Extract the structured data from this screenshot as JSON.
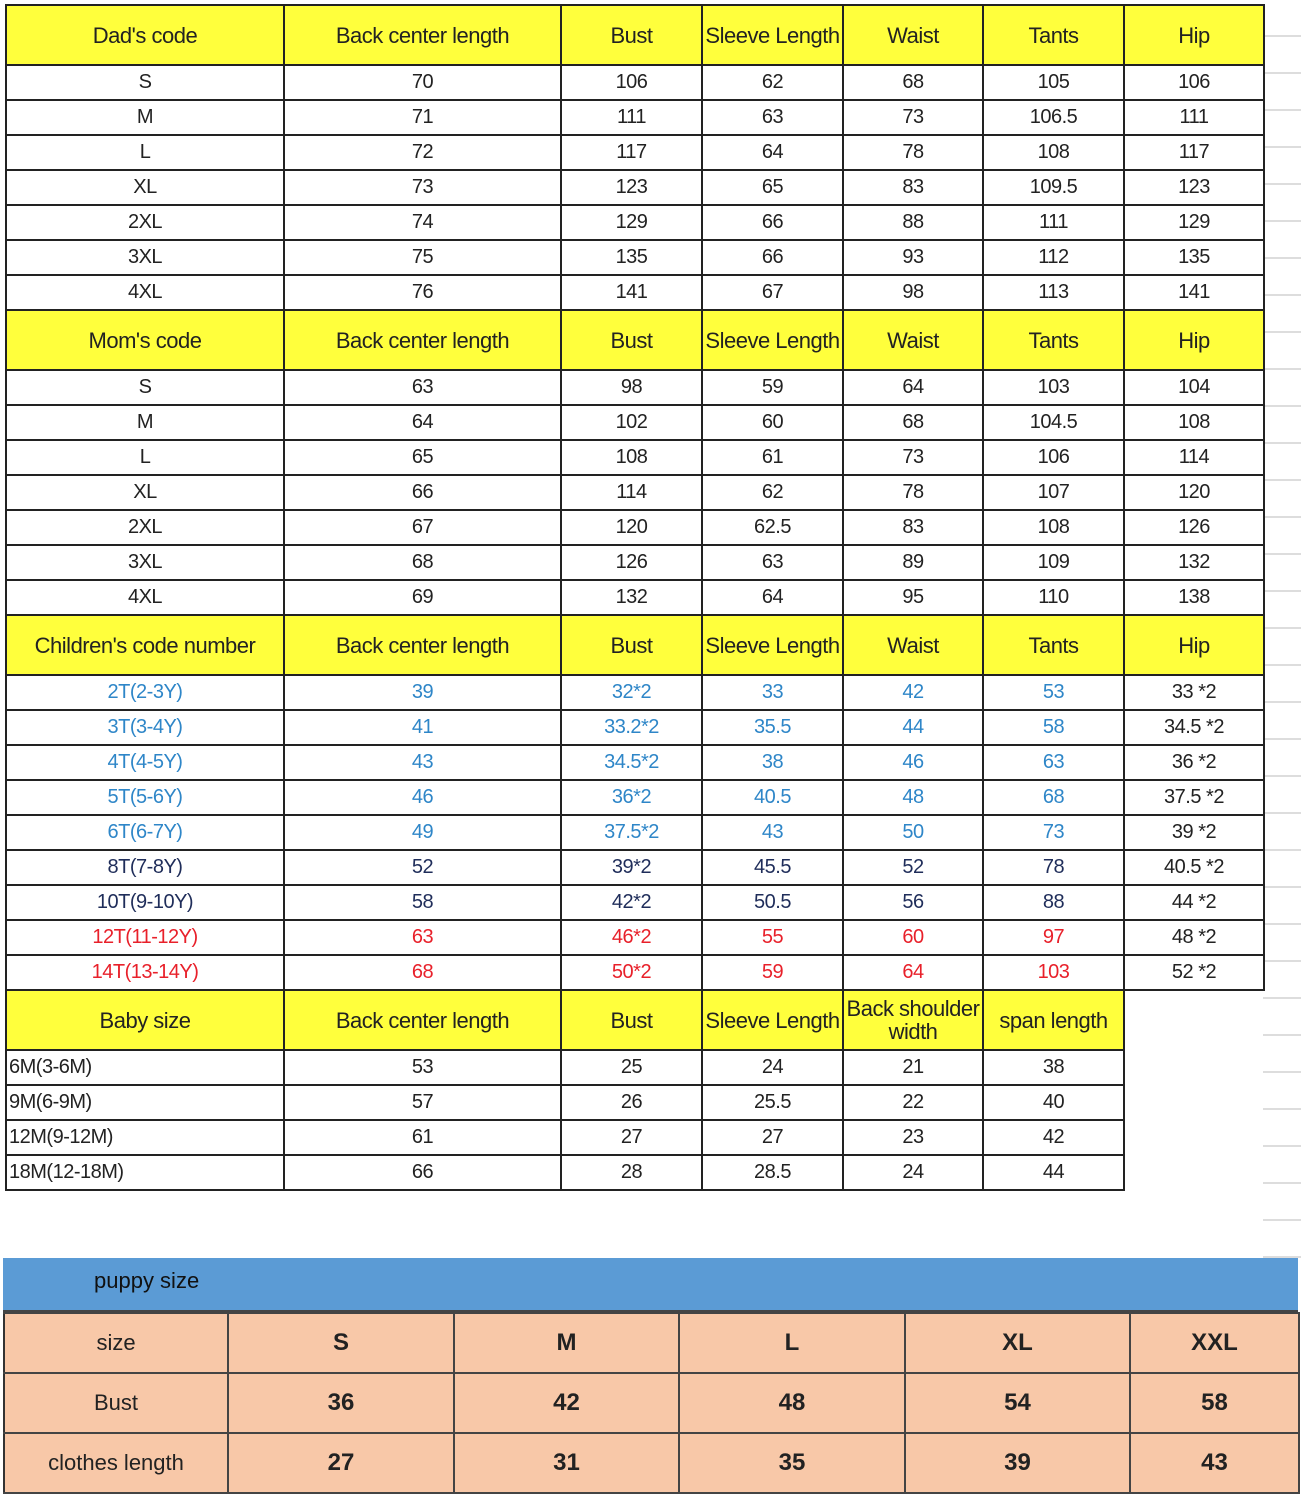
{
  "colors": {
    "header_yellow": "#ffff3c",
    "puppy_band": "#5b9bd5",
    "puppy_cells": "#f8c8a8",
    "blue": "#2e86c8",
    "navy": "#1f2d5a",
    "red": "#e8202a",
    "black": "#222222"
  },
  "sections": [
    {
      "headers": [
        "Dad's code",
        "Back center length",
        "Bust",
        "Sleeve Length",
        "Waist",
        "Tants",
        "Hip"
      ],
      "rows": [
        {
          "cells": [
            "S",
            "70",
            "106",
            "62",
            "68",
            "105",
            "106"
          ]
        },
        {
          "cells": [
            "M",
            "71",
            "111",
            "63",
            "73",
            "106.5",
            "111"
          ]
        },
        {
          "cells": [
            "L",
            "72",
            "117",
            "64",
            "78",
            "108",
            "117"
          ]
        },
        {
          "cells": [
            "XL",
            "73",
            "123",
            "65",
            "83",
            "109.5",
            "123"
          ]
        },
        {
          "cells": [
            "2XL",
            "74",
            "129",
            "66",
            "88",
            "111",
            "129"
          ]
        },
        {
          "cells": [
            "3XL",
            "75",
            "135",
            "66",
            "93",
            "112",
            "135"
          ]
        },
        {
          "cells": [
            "4XL",
            "76",
            "141",
            "67",
            "98",
            "113",
            "141"
          ]
        }
      ]
    },
    {
      "headers": [
        "Mom's code",
        "Back center length",
        "Bust",
        "Sleeve Length",
        "Waist",
        "Tants",
        "Hip"
      ],
      "rows": [
        {
          "cells": [
            "S",
            "63",
            "98",
            "59",
            "64",
            "103",
            "104"
          ]
        },
        {
          "cells": [
            "M",
            "64",
            "102",
            "60",
            "68",
            "104.5",
            "108"
          ]
        },
        {
          "cells": [
            "L",
            "65",
            "108",
            "61",
            "73",
            "106",
            "114"
          ]
        },
        {
          "cells": [
            "XL",
            "66",
            "114",
            "62",
            "78",
            "107",
            "120"
          ]
        },
        {
          "cells": [
            "2XL",
            "67",
            "120",
            "62.5",
            "83",
            "108",
            "126"
          ]
        },
        {
          "cells": [
            "3XL",
            "68",
            "126",
            "63",
            "89",
            "109",
            "132"
          ]
        },
        {
          "cells": [
            "4XL",
            "69",
            "132",
            "64",
            "95",
            "110",
            "138"
          ]
        }
      ]
    },
    {
      "headers": [
        "Children's code number",
        "Back center length",
        "Bust",
        "Sleeve Length",
        "Waist",
        "Tants",
        "Hip"
      ],
      "rows": [
        {
          "color": "blue",
          "cells": [
            "2T(2-3Y)",
            "39",
            "32*2",
            "33",
            "42",
            "53",
            "33 *2"
          ]
        },
        {
          "color": "blue",
          "cells": [
            "3T(3-4Y)",
            "41",
            "33.2*2",
            "35.5",
            "44",
            "58",
            "34.5 *2"
          ]
        },
        {
          "color": "blue",
          "cells": [
            "4T(4-5Y)",
            "43",
            "34.5*2",
            "38",
            "46",
            "63",
            "36 *2"
          ]
        },
        {
          "color": "blue",
          "cells": [
            "5T(5-6Y)",
            "46",
            "36*2",
            "40.5",
            "48",
            "68",
            "37.5 *2"
          ]
        },
        {
          "color": "blue",
          "cells": [
            "6T(6-7Y)",
            "49",
            "37.5*2",
            "43",
            "50",
            "73",
            "39 *2"
          ]
        },
        {
          "color": "navy",
          "cells": [
            "8T(7-8Y)",
            "52",
            "39*2",
            "45.5",
            "52",
            "78",
            "40.5 *2"
          ]
        },
        {
          "color": "navy",
          "cells": [
            "10T(9-10Y)",
            "58",
            "42*2",
            "50.5",
            "56",
            "88",
            "44 *2"
          ]
        },
        {
          "color": "red",
          "cells": [
            "12T(11-12Y)",
            "63",
            "46*2",
            "55",
            "60",
            "97",
            "48 *2"
          ]
        },
        {
          "color": "red",
          "cells": [
            "14T(13-14Y)",
            "68",
            "50*2",
            "59",
            "64",
            "103",
            "52 *2"
          ]
        }
      ]
    },
    {
      "headers": [
        "Baby size",
        "Back center length",
        "Bust",
        "Sleeve Length",
        "Back shoulder width",
        "span length"
      ],
      "rows": [
        {
          "cells": [
            "6M(3-6M)",
            "53",
            "25",
            "24",
            "21",
            "38"
          ]
        },
        {
          "cells": [
            "9M(6-9M)",
            "57",
            "26",
            "25.5",
            "22",
            "40"
          ]
        },
        {
          "cells": [
            "12M(9-12M)",
            "61",
            "27",
            "27",
            "23",
            "42"
          ]
        },
        {
          "cells": [
            "18M(12-18M)",
            "66",
            "28",
            "28.5",
            "24",
            "44"
          ]
        }
      ]
    }
  ],
  "puppy": {
    "title": "puppy size",
    "rows": [
      {
        "cells": [
          "size",
          "S",
          "M",
          "L",
          "XL",
          "XXL"
        ]
      },
      {
        "cells": [
          "Bust",
          "36",
          "42",
          "48",
          "54",
          "58"
        ]
      },
      {
        "cells": [
          "clothes length",
          "27",
          "31",
          "35",
          "39",
          "43"
        ]
      }
    ]
  }
}
